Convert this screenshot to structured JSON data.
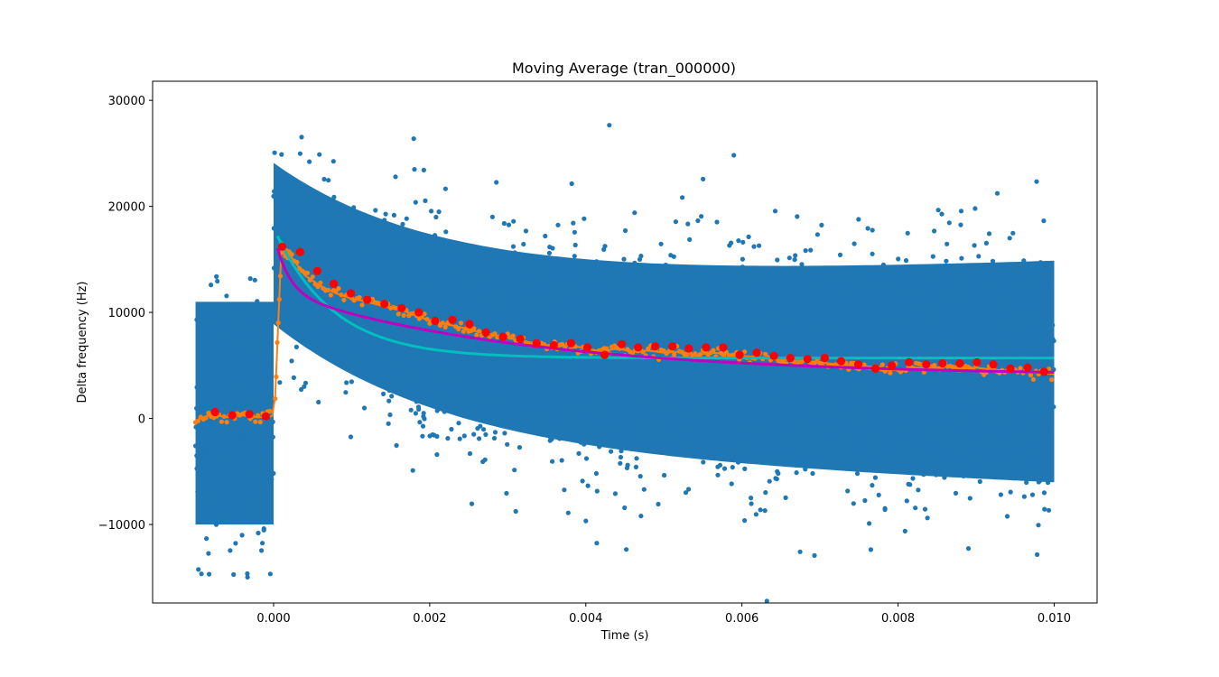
{
  "chart_data": {
    "type": "scatter",
    "title": "Moving Average (tran_000000)",
    "xlabel": "Time (s)",
    "ylabel": "Delta frequency (Hz)",
    "xlim": [
      -0.00155,
      0.01055
    ],
    "ylim": [
      -17400,
      31800
    ],
    "xticks": [
      0.0,
      0.002,
      0.004,
      0.006,
      0.008,
      0.01
    ],
    "xtick_labels": [
      "0.000",
      "0.002",
      "0.004",
      "0.006",
      "0.008",
      "0.010"
    ],
    "yticks": [
      -10000,
      0,
      10000,
      20000,
      30000
    ],
    "ytick_labels": [
      "−10000",
      "0",
      "10000",
      "20000",
      "30000"
    ],
    "grid": false,
    "legend": "none",
    "series": [
      {
        "kind": "scatter-cloud",
        "color": "#1f77b4",
        "segments": [
          {
            "x_range": [
              -0.001,
              0.0
            ],
            "center": -500,
            "spread_low": -10000,
            "spread_high": 11000,
            "outlier_low": -15000,
            "outlier_high": 13500
          },
          {
            "x_range": [
              0.0,
              0.01
            ],
            "center_start": 16500,
            "center_end": 4300,
            "decay_tau": 0.0022,
            "halfwidth_start": 8000,
            "halfwidth_end": 11000,
            "outlier_high_start": 29500,
            "outlier_low_end": -11500
          }
        ]
      },
      {
        "kind": "moving-average",
        "color": "#ff7f0e",
        "x": [
          -0.001,
          -0.0008,
          -0.0006,
          -0.0004,
          -0.0002,
          -2e-05,
          2e-05,
          0.0001,
          0.0002,
          0.0004,
          0.0006,
          0.0008,
          0.001,
          0.0012,
          0.0014,
          0.0016,
          0.0018,
          0.002,
          0.0022,
          0.0024,
          0.0026,
          0.0028,
          0.003,
          0.0032,
          0.0034,
          0.0036,
          0.0038,
          0.004,
          0.0042,
          0.0044,
          0.0046,
          0.0048,
          0.005,
          0.0052,
          0.0054,
          0.0056,
          0.0058,
          0.006,
          0.0062,
          0.0064,
          0.0066,
          0.0068,
          0.007,
          0.0072,
          0.0074,
          0.0076,
          0.0078,
          0.008,
          0.0082,
          0.0084,
          0.0086,
          0.0088,
          0.009,
          0.0092,
          0.0094,
          0.0096,
          0.0098,
          0.01
        ],
        "y": [
          -200,
          400,
          100,
          300,
          100,
          200,
          2000,
          16000,
          15500,
          13500,
          12500,
          11800,
          11300,
          11000,
          10600,
          10300,
          9800,
          9200,
          8900,
          8600,
          8200,
          7900,
          7600,
          7300,
          7000,
          6800,
          6900,
          6600,
          6300,
          6600,
          6300,
          6400,
          6200,
          6300,
          6000,
          6200,
          6100,
          5900,
          5800,
          5600,
          5500,
          5400,
          5300,
          5100,
          5000,
          4800,
          4500,
          4600,
          4800,
          4700,
          4900,
          4700,
          4800,
          4600,
          4500,
          4400,
          4300,
          4200
        ]
      },
      {
        "kind": "binned-means",
        "color": "#ff0000",
        "x": [
          -0.00075,
          -0.00053,
          -0.00031,
          -0.0001,
          0.00011,
          0.00034,
          0.00056,
          0.00077,
          0.00099,
          0.0012,
          0.00142,
          0.00164,
          0.00186,
          0.00207,
          0.00229,
          0.00251,
          0.00272,
          0.00294,
          0.00316,
          0.00337,
          0.00359,
          0.00381,
          0.00402,
          0.00424,
          0.00446,
          0.00467,
          0.00489,
          0.00511,
          0.00532,
          0.00554,
          0.00576,
          0.00597,
          0.00619,
          0.00641,
          0.00662,
          0.00684,
          0.00706,
          0.00727,
          0.00749,
          0.00771,
          0.00792,
          0.00814,
          0.00836,
          0.00857,
          0.00879,
          0.00901,
          0.00922,
          0.00944,
          0.00966,
          0.00987
        ],
        "y": [
          600,
          300,
          400,
          200,
          16200,
          15700,
          13900,
          12700,
          11800,
          11200,
          10800,
          10400,
          10000,
          9200,
          9300,
          8900,
          8100,
          7700,
          7500,
          7100,
          6900,
          7100,
          6700,
          6000,
          7000,
          6700,
          6800,
          6800,
          6600,
          6700,
          6700,
          6000,
          6200,
          5900,
          5700,
          5600,
          5700,
          5400,
          5100,
          4700,
          5000,
          5300,
          5100,
          5200,
          5200,
          5300,
          5100,
          4700,
          4800,
          4400
        ]
      },
      {
        "kind": "fit-curve",
        "color": "#00bfbf",
        "x_start": 0.0,
        "x_end": 0.01,
        "asymptote": 5700,
        "amplitude": 12300,
        "tau": 0.00075
      },
      {
        "kind": "fit-curve",
        "color": "#bf00bf",
        "x_start": 0.0,
        "x_end": 0.01,
        "components": [
          {
            "amplitude": 5500,
            "tau": 0.00018
          },
          {
            "amplitude": 8000,
            "tau": 0.0032
          }
        ],
        "offset": 4000
      }
    ]
  }
}
